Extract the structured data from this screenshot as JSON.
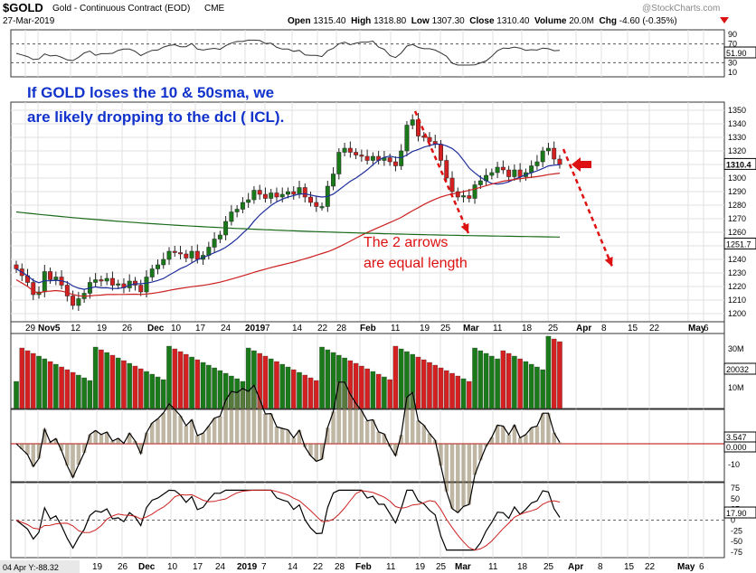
{
  "header": {
    "symbol": "$GOLD",
    "description": "Gold - Continuous Contract (EOD)",
    "exchange": "CME",
    "date": "27-Mar-2019",
    "brand": "@StockCharts.com",
    "open_label": "Open",
    "open": "1315.40",
    "high_label": "High",
    "high": "1318.80",
    "low_label": "Low",
    "low": "1307.30",
    "close_label": "Close",
    "close": "1310.40",
    "volume_label": "Volume",
    "volume": "20.0M",
    "chg_label": "Chg",
    "chg": "-4.60 (-0.35%)"
  },
  "annotations": {
    "main_text_line1": "If GOLD loses the 10 & 50sma, we",
    "main_text_line2": "are likely dropping to the dcl ( ICL).",
    "arrows_line1": "The 2 arrows",
    "arrows_line2": "are equal length"
  },
  "colors": {
    "up_candle": "#1a7a1a",
    "down_candle": "#d42020",
    "sma_fast": "#1e2e9a",
    "sma_mid": "#cc2020",
    "sma_slow": "#1a6a1a",
    "annotation_blue": "#1133cc",
    "annotation_red": "#dd1111",
    "macd_fill": "#c8b89a"
  },
  "chart_data": {
    "type": "candlestick",
    "symbol": "$GOLD",
    "price_axis_ticks": [
      1350,
      1340,
      1330,
      1320,
      1310,
      1300,
      1290,
      1280,
      1270,
      1260,
      1250,
      1240,
      1230,
      1220,
      1210,
      1200
    ],
    "price_ylim": [
      1194,
      1356
    ],
    "last_price_label": "1310.4",
    "sma200_label": "1251.7",
    "x_labels": [
      "29",
      "Nov5",
      "12",
      "19",
      "26",
      "Dec",
      "10",
      "17",
      "24",
      "2019",
      "7",
      "14",
      "22",
      "28",
      "Feb",
      "11",
      "19",
      "25",
      "Mar",
      "11",
      "18",
      "25",
      "Apr",
      "8",
      "15",
      "22",
      "May",
      "6"
    ],
    "x_labels_bottom": [
      "19",
      "26",
      "Dec",
      "10",
      "17",
      "24",
      "2019",
      "7",
      "14",
      "22",
      "28",
      "Feb",
      "11",
      "19",
      "25",
      "Mar",
      "11",
      "18",
      "25",
      "Apr",
      "8",
      "15",
      "22",
      "May",
      "6"
    ],
    "closes": [
      1233,
      1228,
      1223,
      1214,
      1216,
      1231,
      1225,
      1227,
      1221,
      1213,
      1206,
      1211,
      1215,
      1223,
      1225,
      1224,
      1226,
      1221,
      1222,
      1219,
      1224,
      1221,
      1216,
      1227,
      1233,
      1236,
      1240,
      1246,
      1245,
      1244,
      1241,
      1246,
      1240,
      1243,
      1249,
      1255,
      1258,
      1268,
      1275,
      1277,
      1282,
      1284,
      1291,
      1288,
      1285,
      1289,
      1286,
      1288,
      1290,
      1288,
      1293,
      1286,
      1282,
      1279,
      1279,
      1294,
      1303,
      1319,
      1322,
      1319,
      1317,
      1316,
      1313,
      1316,
      1313,
      1315,
      1312,
      1309,
      1320,
      1339,
      1343,
      1331,
      1330,
      1327,
      1325,
      1313,
      1300,
      1290,
      1286,
      1287,
      1285,
      1295,
      1298,
      1302,
      1304,
      1308,
      1306,
      1301,
      1306,
      1301,
      1304,
      1309,
      1312,
      1320,
      1322,
      1314,
      1310
    ],
    "sma_fast_label": "10sma",
    "rsi_ticks": [
      90,
      70,
      50,
      30,
      10
    ],
    "rsi_value": "51.90",
    "volume_ticks": [
      "30M",
      "10M"
    ],
    "volume_value": "20032",
    "macd_ticks": [
      0,
      -10
    ],
    "macd_values": [
      "3.547",
      "0.000"
    ],
    "stoch_ticks": [
      75,
      50,
      25,
      0,
      -25,
      -50,
      -75
    ],
    "stoch_value": "17.90",
    "footer_readout": "04 Apr Y:-88.32"
  }
}
